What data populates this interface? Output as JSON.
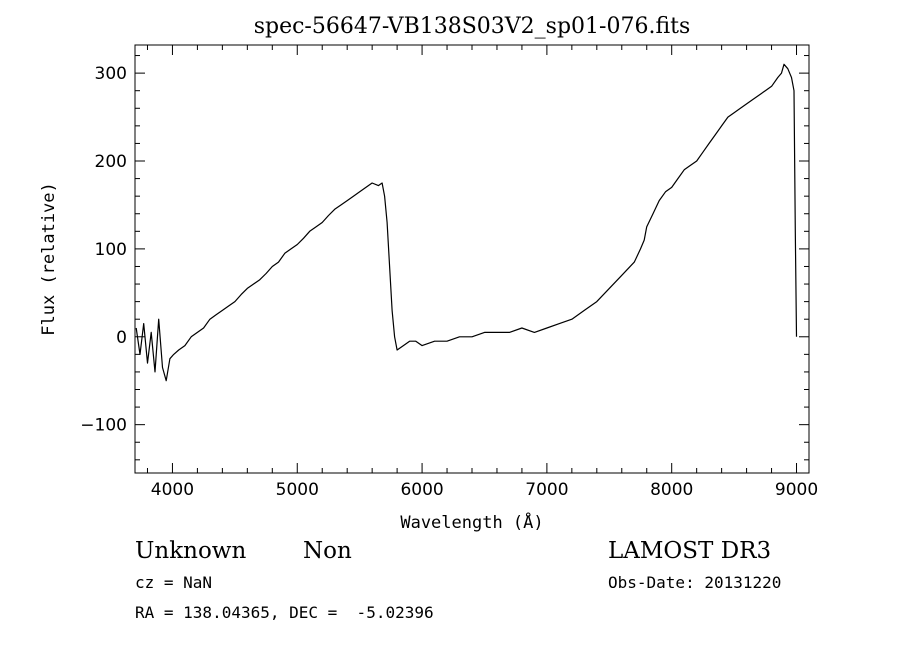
{
  "chart_data": {
    "type": "line",
    "title": "spec-56647-VB138S03V2_sp01-076.fits",
    "xlabel": "Wavelength (Å)",
    "ylabel": "Flux (relative)",
    "xlim": [
      3700,
      9100
    ],
    "ylim": [
      -155,
      332
    ],
    "xticks": [
      4000,
      5000,
      6000,
      7000,
      8000,
      9000
    ],
    "yticks": [
      -100,
      0,
      100,
      200,
      300
    ],
    "ytick_labels": [
      "−100",
      "0",
      "100",
      "200",
      "300"
    ],
    "grid": false,
    "line_color": "#000000",
    "series": [
      {
        "x": [
          3710,
          3740,
          3770,
          3800,
          3830,
          3860,
          3890,
          3920,
          3950,
          3980,
          4010,
          4050,
          4100,
          4150,
          4200,
          4250,
          4300,
          4350,
          4400,
          4450,
          4500,
          4550,
          4600,
          4650,
          4700,
          4750,
          4800,
          4850,
          4900,
          4950,
          5000,
          5050,
          5100,
          5150,
          5200,
          5250,
          5300,
          5350,
          5400,
          5450,
          5500,
          5550,
          5600,
          5650,
          5680,
          5700,
          5720,
          5740,
          5760,
          5780,
          5800,
          5850,
          5900,
          5950,
          6000,
          6100,
          6200,
          6300,
          6400,
          6500,
          6600,
          6700,
          6800,
          6900,
          7000,
          7100,
          7200,
          7300,
          7400,
          7500,
          7600,
          7700,
          7750,
          7780,
          7800,
          7850,
          7900,
          7950,
          8000,
          8050,
          8100,
          8150,
          8200,
          8250,
          8300,
          8350,
          8400,
          8450,
          8500,
          8550,
          8600,
          8650,
          8700,
          8750,
          8800,
          8850,
          8880,
          8900,
          8930,
          8960,
          8980,
          8990,
          9000
        ],
        "y": [
          10,
          -20,
          15,
          -30,
          5,
          -40,
          20,
          -35,
          -50,
          -25,
          -20,
          -15,
          -10,
          0,
          5,
          10,
          20,
          25,
          30,
          35,
          40,
          48,
          55,
          60,
          65,
          72,
          80,
          85,
          95,
          100,
          105,
          112,
          120,
          125,
          130,
          138,
          145,
          150,
          155,
          160,
          165,
          170,
          175,
          172,
          175,
          160,
          130,
          80,
          30,
          0,
          -15,
          -10,
          -5,
          -5,
          -10,
          -5,
          -5,
          0,
          0,
          5,
          5,
          5,
          10,
          5,
          10,
          15,
          20,
          30,
          40,
          55,
          70,
          85,
          100,
          110,
          125,
          140,
          155,
          165,
          170,
          180,
          190,
          195,
          200,
          210,
          220,
          230,
          240,
          250,
          255,
          260,
          265,
          270,
          275,
          280,
          285,
          295,
          300,
          310,
          305,
          295,
          280,
          120,
          0
        ]
      }
    ]
  },
  "info": {
    "classification": "Unknown",
    "subclass": "Non",
    "survey": "LAMOST DR3",
    "cz": "cz = NaN",
    "obs_date": "Obs-Date: 20131220",
    "coords": "RA = 138.04365, DEC =  -5.02396"
  }
}
